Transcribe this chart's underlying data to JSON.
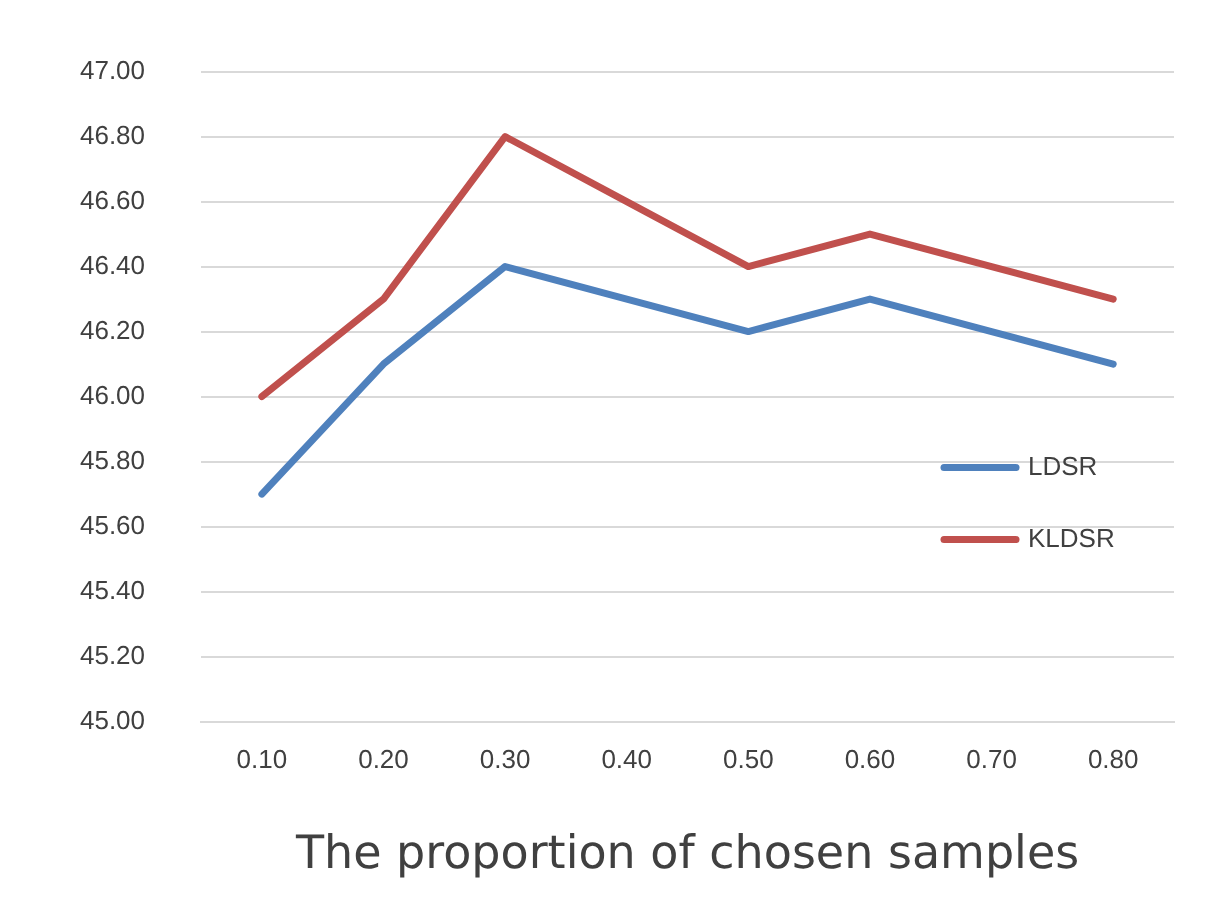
{
  "chart_data": {
    "type": "line",
    "xlabel": "The proportion of chosen samples",
    "categories": [
      "0.10",
      "0.20",
      "0.30",
      "0.40",
      "0.50",
      "0.60",
      "0.70",
      "0.80"
    ],
    "series": [
      {
        "name": "LDSR",
        "color": "#4f81bd",
        "values": [
          45.7,
          46.1,
          46.4,
          46.3,
          46.2,
          46.3,
          46.2,
          46.1
        ]
      },
      {
        "name": "KLDSR",
        "color": "#c0504d",
        "values": [
          46.0,
          46.3,
          46.8,
          46.6,
          46.4,
          46.5,
          46.4,
          46.3
        ]
      }
    ],
    "ylim": [
      45,
      47
    ],
    "yticks": [
      {
        "value": 45,
        "label": "45.00"
      },
      {
        "value": 45.2,
        "label": "45.20"
      },
      {
        "value": 45.4,
        "label": "45.40"
      },
      {
        "value": 45.6,
        "label": "45.60"
      },
      {
        "value": 45.8,
        "label": "45.80"
      },
      {
        "value": 46,
        "label": "46.00"
      },
      {
        "value": 46.2,
        "label": "46.20"
      },
      {
        "value": 46.4,
        "label": "46.40"
      },
      {
        "value": 46.6,
        "label": "46.60"
      },
      {
        "value": 46.8,
        "label": "46.80"
      },
      {
        "value": 47,
        "label": "47.00"
      }
    ],
    "grid": "y",
    "legend": "right",
    "marker": "none",
    "line_style": "solid"
  }
}
